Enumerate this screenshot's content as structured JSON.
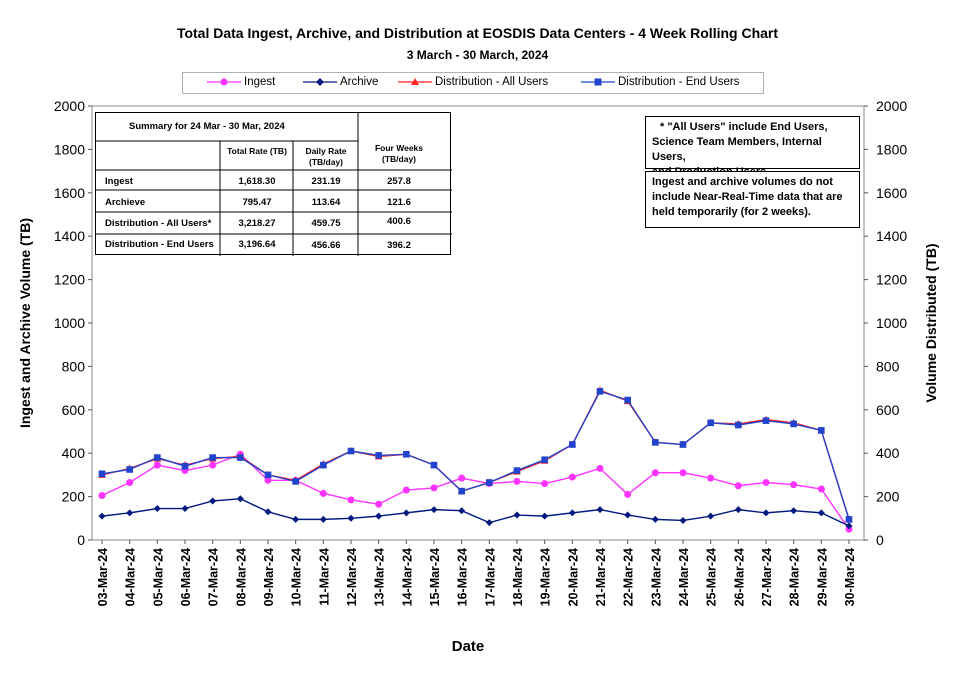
{
  "title": "Total Data Ingest, Archive, and  Distribution at EOSDIS Data Centers - 4 Week Rolling Chart",
  "subtitle": "3  March   -  30  March,  2024",
  "colors": {
    "ingest": "#ff33ff",
    "archive": "#001a80",
    "dist_all": "#ff2222",
    "dist_end": "#2244cc"
  },
  "summary": {
    "title": "Summary  for  24  Mar   -  30  Mar,  2024",
    "col_total": "Total Rate (TB)",
    "col_daily": "Daily Rate (TB/day)",
    "col_four": "Four Weeks (TB/day)",
    "rows": [
      {
        "label": "Ingest",
        "total": "1,618.30",
        "daily": "231.19",
        "four": "257.8"
      },
      {
        "label": "Archieve",
        "total": "795.47",
        "daily": "113.64",
        "four": "121.6"
      },
      {
        "label": "Distribution - All Users*",
        "total": "3,218.27",
        "daily": "459.75",
        "four": "400.6"
      },
      {
        "label": "Distribution - End Users",
        "total": "3,196.64",
        "daily": "456.66",
        "four": "396.2"
      }
    ]
  },
  "notes": {
    "note1_line1": "* \"All Users\" include End Users,",
    "note1_line2": "Science Team Members,  Internal Users,",
    "note1_line3": "and Production Users.",
    "note2_line1": "Ingest and archive volumes do not",
    "note2_line2": "include Near-Real-Time data that are",
    "note2_line3": "held temporarily (for 2 weeks)."
  },
  "chart_data": {
    "type": "line",
    "title": "Total Data Ingest, Archive, and  Distribution at EOSDIS Data Centers - 4 Week Rolling Chart",
    "subtitle": "3  March   -  30  March,  2024",
    "xlabel": "Date",
    "ylabel_left": "Ingest and Archive Volume (TB)",
    "ylabel_right": "Volume Distributed (TB)",
    "ylim": [
      0,
      2000
    ],
    "yticks": [
      0,
      200,
      400,
      600,
      800,
      1000,
      1200,
      1400,
      1600,
      1800,
      2000
    ],
    "legend_position": "top",
    "grid": false,
    "categories": [
      "03-Mar-24",
      "04-Mar-24",
      "05-Mar-24",
      "06-Mar-24",
      "07-Mar-24",
      "08-Mar-24",
      "09-Mar-24",
      "10-Mar-24",
      "11-Mar-24",
      "12-Mar-24",
      "13-Mar-24",
      "14-Mar-24",
      "15-Mar-24",
      "16-Mar-24",
      "17-Mar-24",
      "18-Mar-24",
      "19-Mar-24",
      "20-Mar-24",
      "21-Mar-24",
      "22-Mar-24",
      "23-Mar-24",
      "24-Mar-24",
      "25-Mar-24",
      "26-Mar-24",
      "27-Mar-24",
      "28-Mar-24",
      "29-Mar-24",
      "30-Mar-24"
    ],
    "series": [
      {
        "name": "Ingest",
        "axis": "left",
        "marker": "circle",
        "color": "#ff33ff",
        "values": [
          205,
          265,
          345,
          320,
          345,
          395,
          275,
          275,
          215,
          185,
          165,
          230,
          240,
          285,
          260,
          270,
          260,
          290,
          330,
          210,
          310,
          310,
          285,
          250,
          265,
          255,
          235,
          50
        ]
      },
      {
        "name": "Archive",
        "axis": "left",
        "marker": "diamond",
        "color": "#001a80",
        "values": [
          110,
          125,
          145,
          145,
          180,
          190,
          130,
          95,
          95,
          100,
          110,
          125,
          140,
          135,
          80,
          115,
          110,
          125,
          140,
          115,
          95,
          90,
          110,
          140,
          125,
          135,
          125,
          65
        ]
      },
      {
        "name": "Distribution - All Users",
        "axis": "right",
        "marker": "triangle",
        "color": "#ff2222",
        "values": [
          300,
          330,
          375,
          345,
          375,
          385,
          300,
          275,
          350,
          410,
          385,
          395,
          345,
          225,
          265,
          315,
          365,
          440,
          690,
          640,
          450,
          440,
          540,
          535,
          555,
          540,
          505,
          95
        ]
      },
      {
        "name": "Distribution - End Users",
        "axis": "right",
        "marker": "square",
        "color": "#2244cc",
        "values": [
          305,
          325,
          380,
          340,
          380,
          380,
          300,
          270,
          345,
          410,
          390,
          395,
          345,
          225,
          265,
          320,
          370,
          440,
          685,
          645,
          450,
          440,
          540,
          530,
          550,
          535,
          505,
          95
        ]
      }
    ]
  }
}
